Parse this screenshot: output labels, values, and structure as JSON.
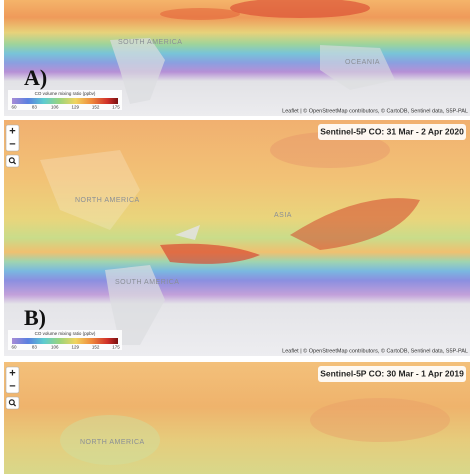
{
  "controls": {
    "zoom_in": "+",
    "zoom_out": "−"
  },
  "panels": [
    {
      "label": "A)",
      "places": [
        "SOUTH AMERICA",
        "OCEANIA"
      ],
      "legend": {
        "title": "CO volume mixing ratio (ppbv)",
        "ticks": [
          60,
          83,
          106,
          129,
          152,
          175
        ]
      },
      "attribution": "Leaflet | © OpenStreetMap contributors, © CartoDB, Sentinel data, S5P-PAL"
    },
    {
      "label": "B)",
      "title": "Sentinel-5P CO: 31 Mar - 2 Apr 2020",
      "places": [
        "NORTH AMERICA",
        "ASIA",
        "SOUTH AMERICA"
      ],
      "legend": {
        "title": "CO volume mixing ratio (ppbv)",
        "ticks": [
          60,
          83,
          106,
          129,
          152,
          175
        ]
      },
      "attribution": "Leaflet | © OpenStreetMap contributors, © CartoDB, Sentinel data, S5P-PAL"
    },
    {
      "title": "Sentinel-5P CO: 30 Mar - 1 Apr 2019",
      "places": [
        "NORTH AMERICA"
      ]
    }
  ]
}
